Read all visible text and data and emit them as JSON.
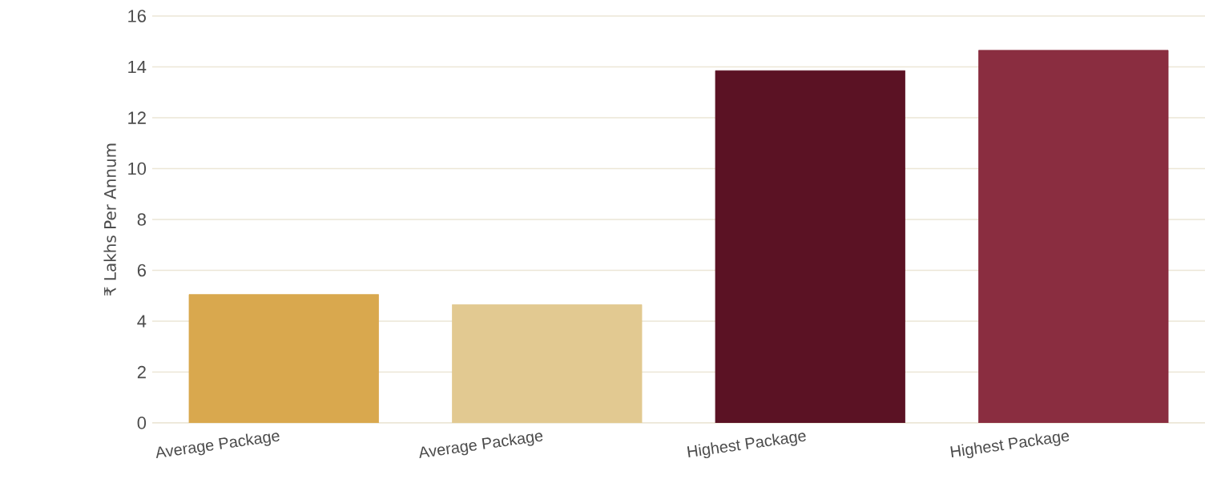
{
  "chart_data": {
    "type": "bar",
    "ylabel": "₹ Lakhs Per Annum",
    "categories": [
      "Average Package",
      "Average Package",
      "Highest Package",
      "Highest Package"
    ],
    "values": [
      5.05,
      4.65,
      13.85,
      14.65
    ],
    "colors": [
      "#d9a84e",
      "#e2c991",
      "#5b1224",
      "#8a2d40"
    ],
    "ylim": [
      0,
      16
    ],
    "yticks": [
      0,
      2,
      4,
      6,
      8,
      10,
      12,
      14,
      16
    ],
    "grid": "y"
  }
}
